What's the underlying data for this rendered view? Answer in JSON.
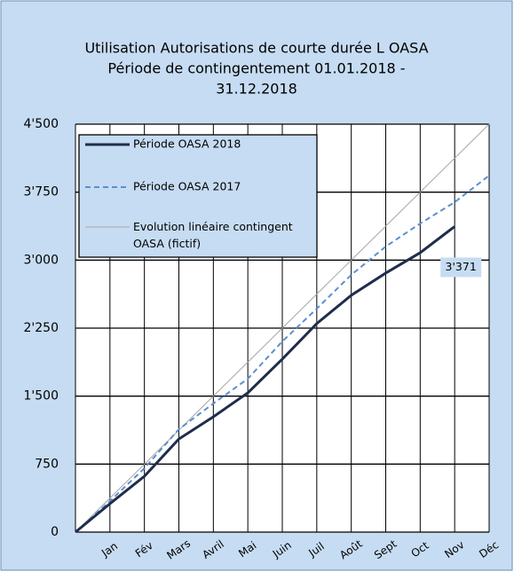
{
  "chart_data": {
    "type": "line",
    "title": [
      "Utilisation Autorisations de courte durée L OASA",
      "Période de contingentement 01.01.2018 -",
      "31.12.2018"
    ],
    "categories": [
      null,
      "Jan",
      "Fév",
      "Mars",
      "Avril",
      "Mai",
      "Juin",
      "Juil",
      "Août",
      "Sept",
      "Oct",
      "Nov",
      "Déc"
    ],
    "series": [
      {
        "name": "Période OASA 2018",
        "color": "#1f2d4d",
        "style": "solid",
        "width": 3,
        "values": [
          0,
          313,
          616,
          1027,
          1272,
          1536,
          1908,
          2300,
          2612,
          2857,
          3082,
          3371,
          null
        ],
        "value_labels": [
          null,
          null,
          null,
          null,
          null,
          null,
          null,
          null,
          null,
          null,
          null,
          "3'371",
          null
        ]
      },
      {
        "name": "Période OASA 2017",
        "color": "#5b8fd0",
        "style": "dashed",
        "width": 2,
        "values": [
          0,
          342,
          704,
          1135,
          1418,
          1692,
          2103,
          2465,
          2837,
          3150,
          3404,
          3639,
          3933
        ]
      },
      {
        "name": "Evolution linéaire contingent OASA (fictif)",
        "color": "#a6a6a6",
        "style": "solid",
        "width": 1,
        "values": [
          0,
          375,
          750,
          1125,
          1500,
          1875,
          2250,
          2625,
          3000,
          3375,
          3750,
          4125,
          4500
        ]
      }
    ],
    "ylim": [
      0,
      4500
    ],
    "yticks": [
      0,
      750,
      {
        "value": 1500,
        "label": "1'500"
      },
      {
        "value": 2250,
        "label": "2'250"
      },
      {
        "value": 3000,
        "label": "3'000"
      },
      {
        "value": 3750,
        "label": "3'750"
      },
      {
        "value": 4500,
        "label": "4'500"
      }
    ],
    "grid": true,
    "legend": "upper left"
  }
}
